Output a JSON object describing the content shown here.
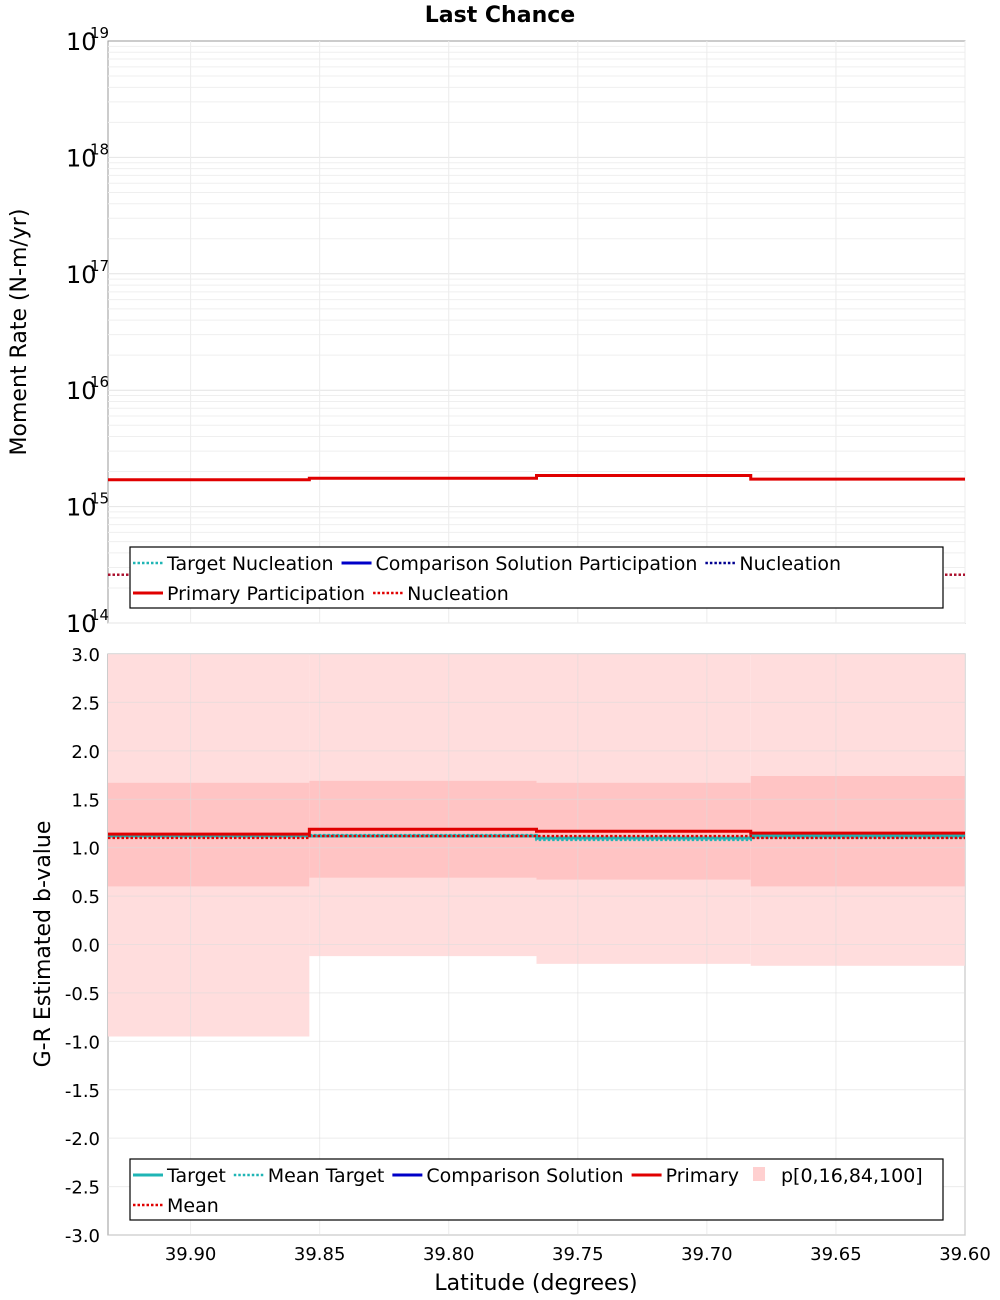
{
  "chart_data": [
    {
      "type": "line",
      "title": "Last Chance",
      "ylabel": "Moment Rate (N-m/yr)",
      "yscale": "log",
      "ylim": [
        100000000000000.0,
        1e+19
      ],
      "xlim": [
        39.932,
        39.6
      ],
      "x_reversed": true,
      "ytick_labels": [
        {
          "base": "10",
          "exp": "19",
          "value": 1e+19
        },
        {
          "base": "10",
          "exp": "18",
          "value": 1e+18
        },
        {
          "base": "10",
          "exp": "17",
          "value": 1e+17
        },
        {
          "base": "10",
          "exp": "16",
          "value": 1e+16
        },
        {
          "base": "10",
          "exp": "15",
          "value": 1000000000000000.0
        },
        {
          "base": "10",
          "exp": "14",
          "value": 100000000000000.0
        }
      ],
      "bin_edges": [
        39.932,
        39.854,
        39.766,
        39.683,
        39.6
      ],
      "series": [
        {
          "name": "Target Nucleation",
          "style": "dotted",
          "color": "#1fb5b5",
          "values": [
            260000000000000.0,
            260000000000000.0,
            260000000000000.0,
            260000000000000.0
          ]
        },
        {
          "name": "Comparison Solution Participation",
          "style": "solid",
          "color": "#0000c8",
          "values": [
            null,
            null,
            null,
            null
          ]
        },
        {
          "name": "Nucleation",
          "style": "dotted",
          "color": "#000090",
          "values": [
            260000000000000.0,
            260000000000000.0,
            260000000000000.0,
            260000000000000.0
          ]
        },
        {
          "name": "Primary Participation",
          "style": "solid",
          "color": "#e00000",
          "values": [
            1700000000000000.0,
            1750000000000000.0,
            1850000000000000.0,
            1720000000000000.0
          ]
        },
        {
          "name": "Nucleation",
          "style": "dotted",
          "color": "#e00000",
          "values": [
            260000000000000.0,
            260000000000000.0,
            260000000000000.0,
            260000000000000.0
          ]
        }
      ],
      "legend": {
        "placement": "bottom",
        "rows": [
          [
            {
              "label": "Target Nucleation",
              "color": "#1fb5b5",
              "style": "dotted"
            },
            {
              "label": "Comparison Solution Participation",
              "color": "#0000c8",
              "style": "solid"
            },
            {
              "label": "Nucleation",
              "color": "#000090",
              "style": "dotted"
            }
          ],
          [
            {
              "label": "Primary Participation",
              "color": "#e00000",
              "style": "solid"
            },
            {
              "label": "Nucleation",
              "color": "#e00000",
              "style": "dotted"
            }
          ]
        ]
      },
      "grid": true
    },
    {
      "type": "line",
      "ylabel": "G-R Estimated b-value",
      "xlabel": "Latitude (degrees)",
      "ylim": [
        -3.0,
        3.0
      ],
      "xlim": [
        39.932,
        39.6
      ],
      "x_reversed": true,
      "yticks": [
        "3.0",
        "2.5",
        "2.0",
        "1.5",
        "1.0",
        "0.5",
        "0.0",
        "-0.5",
        "-1.0",
        "-1.5",
        "-2.0",
        "-2.5",
        "-3.0"
      ],
      "ytick_values": [
        3.0,
        2.5,
        2.0,
        1.5,
        1.0,
        0.5,
        0.0,
        -0.5,
        -1.0,
        -1.5,
        -2.0,
        -2.5,
        -3.0
      ],
      "xticks": [
        "39.90",
        "39.85",
        "39.80",
        "39.75",
        "39.70",
        "39.65",
        "39.60"
      ],
      "xtick_values": [
        39.9,
        39.85,
        39.8,
        39.75,
        39.7,
        39.65,
        39.6
      ],
      "bin_edges": [
        39.932,
        39.854,
        39.766,
        39.683,
        39.6
      ],
      "bands": {
        "name": "p[0,16,84,100]",
        "outer_color": "#ffdddd",
        "inner_color": "#ffc4c4",
        "p0": [
          -0.95,
          -0.12,
          -0.2,
          -0.22
        ],
        "p16": [
          0.6,
          0.69,
          0.67,
          0.6
        ],
        "p84": [
          1.67,
          1.69,
          1.67,
          1.74
        ],
        "p100": [
          3.0,
          3.0,
          3.0,
          3.0
        ]
      },
      "series": [
        {
          "name": "Target",
          "style": "solid",
          "color": "#1fb5b5",
          "values": [
            1.12,
            1.12,
            1.1,
            1.12
          ]
        },
        {
          "name": "Mean Target",
          "style": "dotted",
          "color": "#1fb5b5",
          "values": [
            1.12,
            1.13,
            1.08,
            1.1
          ]
        },
        {
          "name": "Comparison Solution",
          "style": "solid",
          "color": "#0000c8",
          "values": [
            null,
            null,
            null,
            null
          ]
        },
        {
          "name": "Primary",
          "style": "solid",
          "color": "#e00000",
          "values": [
            1.14,
            1.19,
            1.17,
            1.15
          ]
        },
        {
          "name": "Mean",
          "style": "dotted",
          "color": "#e00000",
          "values": [
            1.1,
            1.12,
            1.12,
            1.1
          ]
        }
      ],
      "legend": {
        "placement": "bottom",
        "rows": [
          [
            {
              "label": "Target",
              "color": "#1fb5b5",
              "style": "solid"
            },
            {
              "label": "Mean Target",
              "color": "#1fb5b5",
              "style": "dotted"
            },
            {
              "label": "Comparison Solution",
              "color": "#0000c8",
              "style": "solid"
            },
            {
              "label": "Primary",
              "color": "#e00000",
              "style": "solid"
            },
            {
              "label": "p[0,16,84,100]",
              "color": "#ffdddd",
              "style": "swatch"
            }
          ],
          [
            {
              "label": "Mean",
              "color": "#e00000",
              "style": "dotted"
            }
          ]
        ]
      },
      "grid": true
    }
  ]
}
